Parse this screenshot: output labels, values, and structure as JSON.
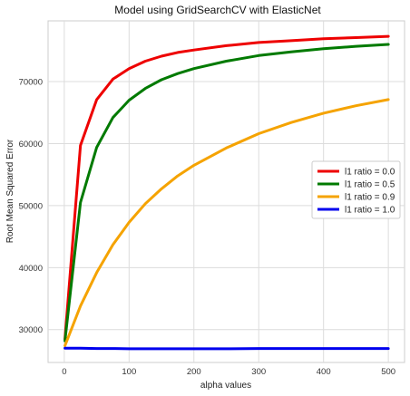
{
  "chart_data": {
    "type": "line",
    "title": "Model using GridSearchCV with ElasticNet",
    "xlabel": "alpha values",
    "ylabel": "Root Mean Squared Error",
    "xlim": [
      -25,
      525
    ],
    "ylim": [
      24700,
      79800
    ],
    "xticks": [
      0,
      100,
      200,
      300,
      400,
      500
    ],
    "yticks": [
      30000,
      40000,
      50000,
      60000,
      70000
    ],
    "grid": true,
    "legend_position": "center-right",
    "x": [
      1,
      25,
      50,
      75,
      100,
      125,
      150,
      175,
      200,
      250,
      300,
      350,
      400,
      450,
      500
    ],
    "series": [
      {
        "name": "l1 ratio = 0.0",
        "color": "#ee0000",
        "values": [
          28500,
          59700,
          67100,
          70400,
          72100,
          73300,
          74100,
          74700,
          75100,
          75800,
          76300,
          76600,
          76900,
          77100,
          77300
        ]
      },
      {
        "name": "l1 ratio = 0.5",
        "color": "#007a00",
        "values": [
          28200,
          50500,
          59400,
          64200,
          67000,
          68900,
          70300,
          71300,
          72100,
          73300,
          74200,
          74800,
          75300,
          75700,
          76000
        ]
      },
      {
        "name": "l1 ratio = 0.9",
        "color": "#f5a300",
        "values": [
          27400,
          33800,
          39200,
          43700,
          47300,
          50300,
          52700,
          54800,
          56500,
          59300,
          61600,
          63400,
          64900,
          66100,
          67100
        ]
      },
      {
        "name": "l1 ratio = 1.0",
        "color": "#0000ee",
        "values": [
          27000,
          27000,
          26950,
          26950,
          26900,
          26900,
          26900,
          26900,
          26900,
          26900,
          26950,
          26950,
          26950,
          26950,
          26950
        ]
      }
    ]
  }
}
